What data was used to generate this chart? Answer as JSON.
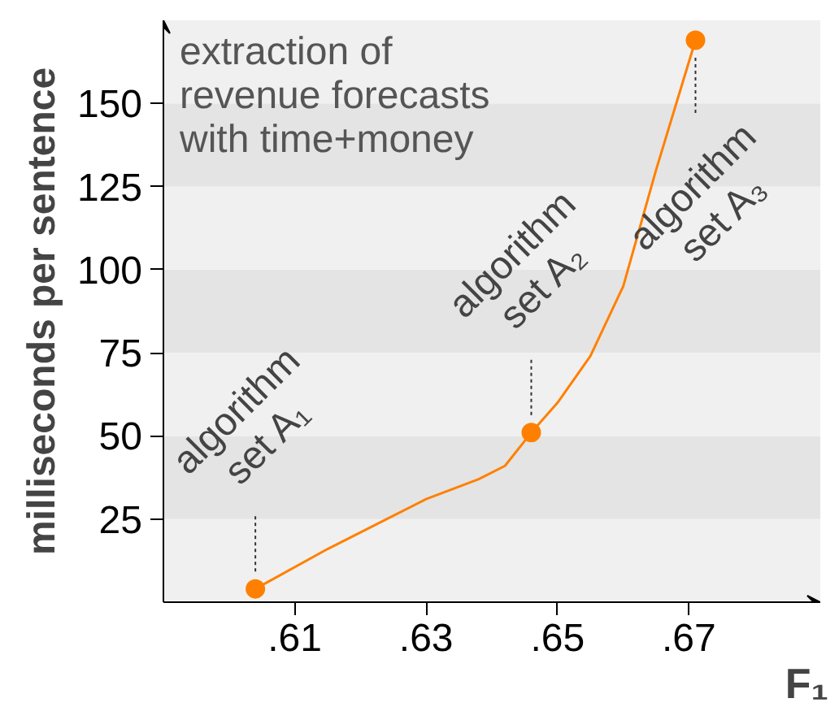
{
  "chart_data": {
    "type": "line",
    "title": "extraction of\nrevenue forecasts\nwith time+money",
    "xlabel": "F₁",
    "ylabel": "milliseconds per sentence",
    "xlim": [
      0.59,
      0.69
    ],
    "ylim": [
      0,
      175
    ],
    "xticks": [
      {
        "value": 0.61,
        "label": ".61"
      },
      {
        "value": 0.63,
        "label": ".63"
      },
      {
        "value": 0.65,
        "label": ".65"
      },
      {
        "value": 0.67,
        "label": ".67"
      }
    ],
    "yticks": [
      25,
      50,
      75,
      100,
      125,
      150
    ],
    "grid": false,
    "bands": [
      {
        "axis": "y",
        "from": 0,
        "to": 25,
        "color": "#f0f0f0"
      },
      {
        "axis": "y",
        "from": 25,
        "to": 50,
        "color": "#e4e4e4"
      },
      {
        "axis": "y",
        "from": 50,
        "to": 75,
        "color": "#f0f0f0"
      },
      {
        "axis": "y",
        "from": 75,
        "to": 100,
        "color": "#e4e4e4"
      },
      {
        "axis": "y",
        "from": 100,
        "to": 125,
        "color": "#f0f0f0"
      },
      {
        "axis": "y",
        "from": 125,
        "to": 150,
        "color": "#e4e4e4"
      },
      {
        "axis": "y",
        "from": 150,
        "to": 175,
        "color": "#f0f0f0"
      }
    ],
    "series": [
      {
        "color": "#ff8000",
        "marker": "none",
        "x": [
          0.604,
          0.615,
          0.625,
          0.63,
          0.638,
          0.642,
          0.646,
          0.65,
          0.655,
          0.66,
          0.665,
          0.671
        ],
        "values": [
          4,
          16,
          26,
          31,
          37,
          41,
          51,
          60,
          74,
          95,
          130,
          169
        ]
      },
      {
        "type": "scatter",
        "color": "#ff8000",
        "marker": "circle",
        "x": [
          0.604,
          0.646,
          0.671
        ],
        "values": [
          4,
          51,
          169
        ]
      }
    ],
    "annotations": [
      {
        "text": "algorithm\nset A₁",
        "x": 0.604,
        "y": 4
      },
      {
        "text": "algorithm\nset A₂",
        "x": 0.646,
        "y": 51
      },
      {
        "text": "algorithm\nset A₃",
        "x": 0.671,
        "y": 169
      }
    ]
  }
}
